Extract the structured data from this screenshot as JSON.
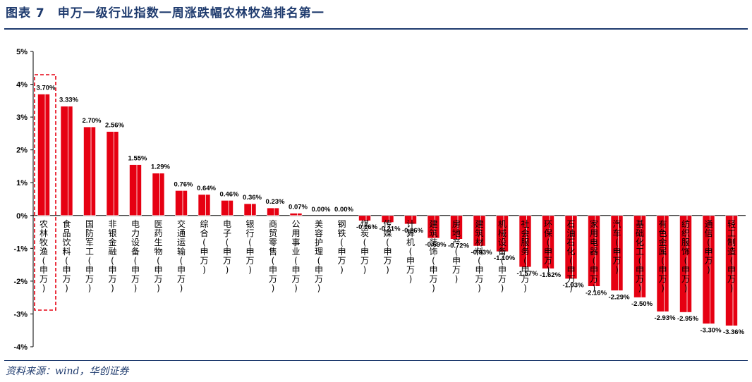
{
  "header": {
    "title": "图表 7　申万一级行业指数一周涨跌幅农林牧渔排名第一"
  },
  "footer": {
    "source": "资料来源：wind，华创证券"
  },
  "chart_data": {
    "type": "bar",
    "title": "",
    "xlabel": "",
    "ylabel": "",
    "ylim": [
      -4,
      5
    ],
    "yticks": [
      "5%",
      "4%",
      "3%",
      "2%",
      "1%",
      "0%",
      "-1%",
      "-2%",
      "-3%",
      "-4%"
    ],
    "ytick_values": [
      5,
      4,
      3,
      2,
      1,
      0,
      -1,
      -2,
      -3,
      -4
    ],
    "bar_color": "#e60012",
    "highlight_color": "#e60012",
    "highlight_index": 0,
    "grid": false,
    "legend": "none",
    "categories": [
      "农林牧渔(申万)",
      "食品饮料(申万)",
      "国防军工(申万)",
      "非银金融(申万)",
      "电力设备(申万)",
      "医药生物(申万)",
      "交通运输(申万)",
      "综合(申万)",
      "电子(申万)",
      "银行(申万)",
      "商贸零售(申万)",
      "公用事业(申万)",
      "美容护理(申万)",
      "钢铁(申万)",
      "煤炭(申万)",
      "传媒(申万)",
      "计算机(申万)",
      "建筑装饰(申万)",
      "房地产(申万)",
      "建筑材料(申万)",
      "机械设备(申万)",
      "社会服务(申万)",
      "环保(申万)",
      "石油石化(申万)",
      "家用电器(申万)",
      "汽车(申万)",
      "基础化工(申万)",
      "有色金属(申万)",
      "纺织服饰(申万)",
      "通信(申万)",
      "轻工制造(申万)"
    ],
    "values": [
      3.7,
      3.33,
      2.7,
      2.56,
      1.55,
      1.29,
      0.76,
      0.64,
      0.46,
      0.36,
      0.23,
      0.07,
      0.0,
      0.0,
      -0.16,
      -0.21,
      -0.26,
      -0.69,
      -0.72,
      -0.93,
      -1.1,
      -1.57,
      -1.62,
      -1.93,
      -2.16,
      -2.29,
      -2.5,
      -2.93,
      -2.95,
      -3.3,
      -3.36
    ],
    "value_labels": [
      "3.70%",
      "3.33%",
      "2.70%",
      "2.56%",
      "1.55%",
      "1.29%",
      "0.76%",
      "0.64%",
      "0.46%",
      "0.36%",
      "0.23%",
      "0.07%",
      "0.00%",
      "0.00%",
      "-0.16%",
      "-0.21%",
      "-0.26%",
      "-0.69%",
      "-0.72%",
      "-0.93%",
      "-1.10%",
      "-1.57%",
      "-1.62%",
      "-1.93%",
      "-2.16%",
      "-2.29%",
      "-2.50%",
      "-2.93%",
      "-2.95%",
      "-3.30%",
      "-3.36%"
    ]
  }
}
